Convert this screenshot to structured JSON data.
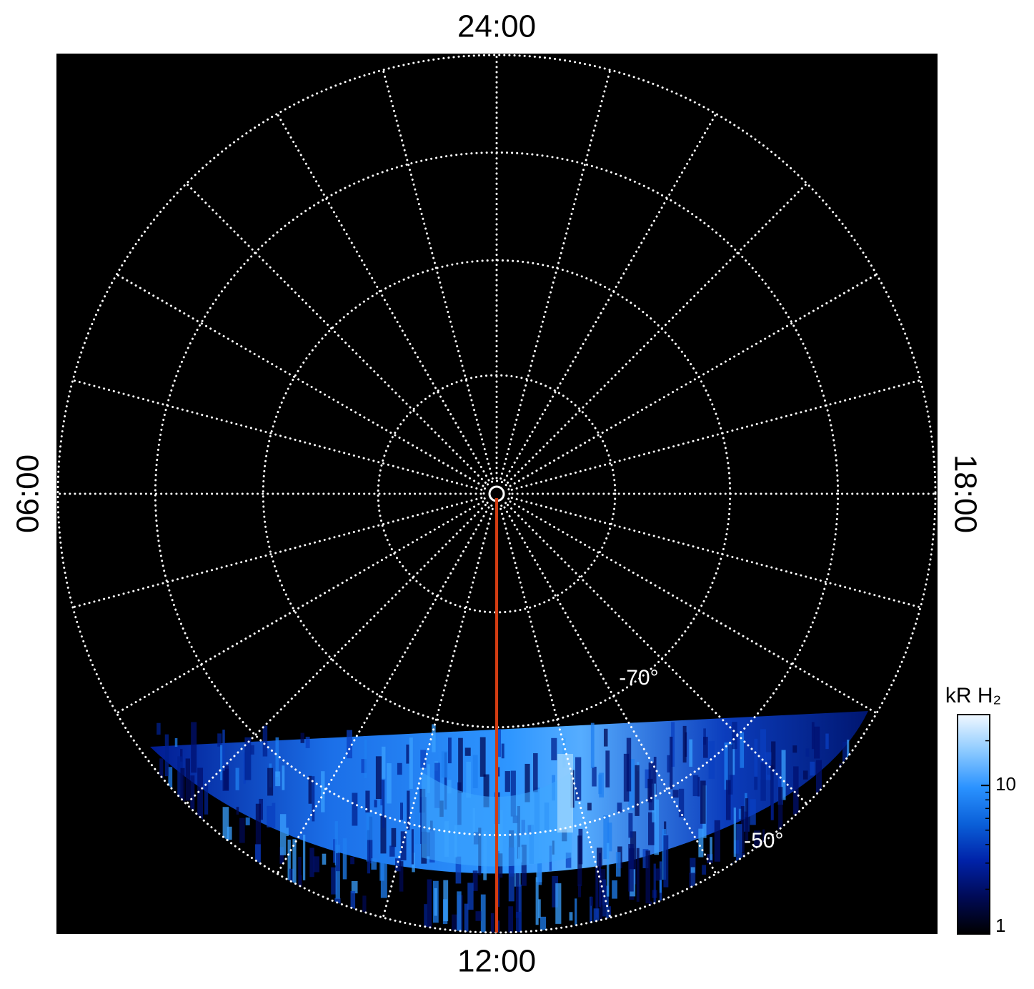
{
  "chart_data": {
    "type": "polar-image",
    "background": "#000000",
    "grid_color": "#ffffff",
    "rlim": [
      -90,
      -50
    ],
    "rticks": [
      {
        "value": -80,
        "label": null
      },
      {
        "value": -70,
        "label": "-70°"
      },
      {
        "value": -60,
        "label": null
      },
      {
        "value": -50,
        "label": "-50°"
      }
    ],
    "hour_ticks": [
      {
        "value": 0,
        "label": "24:00"
      },
      {
        "value": 6,
        "label": "06:00"
      },
      {
        "value": 12,
        "label": "12:00"
      },
      {
        "value": 18,
        "label": "18:00"
      }
    ],
    "spoke_step_hours": 1,
    "meridian_line": {
      "hour": 12,
      "color": "#d23c12"
    },
    "colorbar": {
      "title": "kR H₂",
      "lim": [
        1,
        30
      ],
      "ticks": [
        1,
        10
      ],
      "log": true,
      "colors": [
        "#000000",
        "#000a55",
        "#0022a8",
        "#0a5fd8",
        "#2a92ff",
        "#8ccaff",
        "#f0f8ff"
      ]
    }
  }
}
